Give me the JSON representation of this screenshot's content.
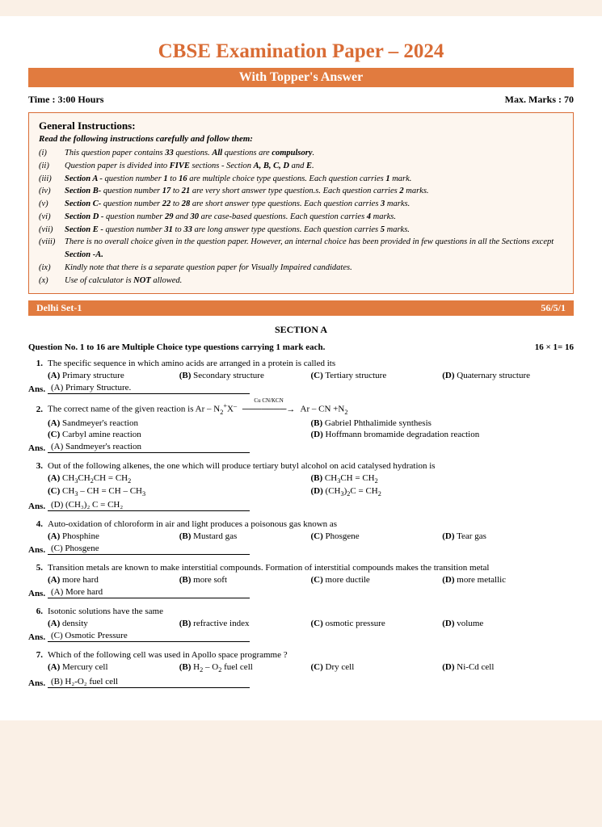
{
  "title": "CBSE Examination Paper – 2024",
  "subtitle": "With Topper's Answer",
  "time_label": "Time : 3:00 Hours",
  "marks_label": "Max. Marks : 70",
  "instructions": {
    "heading": "General Instructions:",
    "lead": "Read the following instructions carefully and follow them:",
    "items": [
      {
        "num": "(i)",
        "html": "This question paper contains <b>33</b> questions. <b>All</b> questions are <b>compulsory</b>."
      },
      {
        "num": "(ii)",
        "html": "Question paper is divided into <b>FIVE</b> sections - Section <b>A, B, C, D</b>  and <b>E</b>."
      },
      {
        "num": "(iii)",
        "html": "<b>Section A -</b> question number <b>1</b> to <b>16</b> are multiple choice type  questions. Each question carries <b>1</b> mark."
      },
      {
        "num": "(iv)",
        "html": "<b>Section B-</b> question number <b>17</b> to <b>21</b> are very short answer type  question.s. Each question carries <b>2</b> marks."
      },
      {
        "num": "(v)",
        "html": "<b>Section C-</b> question number <b>22</b> to <b>28</b> are short answer type questions.  Each question carries <b>3</b> marks."
      },
      {
        "num": "(vi)",
        "html": "<b>Section D -</b> question number <b>29</b> and <b>30</b> are case-based questions.  Each question carries <b>4</b> marks."
      },
      {
        "num": "(vii)",
        "html": "<b>Section E -</b> question number <b>31</b> to <b>33</b> are long answer type questions.  Each question carries <b>5</b> marks."
      },
      {
        "num": "(viii)",
        "html": "There is no overall choice given in the question paper. However, an  internal choice has been provided in few questions in all the Sections except <b>Section -A.</b>"
      },
      {
        "num": "(ix)",
        "html": "Kindly note that there is a separate question paper for Visually  Impaired candidates."
      },
      {
        "num": "(x)",
        "html": "Use of calculator is <b>NOT</b> allowed."
      }
    ]
  },
  "set_band": {
    "left": "Delhi Set-1",
    "right": "56/5/1"
  },
  "section_a": {
    "title": "SECTION A",
    "lead_left": "Question No. 1 to 16 are Multiple Choice type questions carrying 1 mark each.",
    "lead_right": "16 × 1= 16"
  },
  "questions": [
    {
      "num": "1.",
      "text": "The specific sequence in which amino acids are arranged in a protein is called its",
      "options": [
        {
          "label": "(A)",
          "text": "Primary structure"
        },
        {
          "label": "(B)",
          "text": "Secondary structure"
        },
        {
          "label": "(C)",
          "text": "Tertiary structure"
        },
        {
          "label": "(D)",
          "text": "Quaternary structure"
        }
      ],
      "opt_wide": false,
      "answer": "(A)  Primary Structure."
    },
    {
      "num": "2.",
      "text_html": "The correct name of the given reaction is Ar – N<sub>2</sub><sup>+</sup>X<sup>–</sup> <span class='arrow-over'>───────→</span> Ar – CN  +N<sub>2</sub>",
      "options": [
        {
          "label": "(A)",
          "text": "Sandmeyer's reaction"
        },
        {
          "label": "(B)",
          "text": "Gabriel Phthalimide synthesis"
        },
        {
          "label": "(C)",
          "text": "Carbyl amine reaction"
        },
        {
          "label": "(D)",
          "text": "Hoffmann bromamide degradation reaction"
        }
      ],
      "opt_wide": true,
      "answer": "(A)  Sandmeyer's reaction"
    },
    {
      "num": "3.",
      "text": "Out of the following alkenes, the one which will produce tertiary butyl alcohol on acid catalysed hydration is",
      "options": [
        {
          "label": "(A)",
          "html": "CH<sub>3</sub>CH<sub>2</sub>CH = CH<sub>2</sub>"
        },
        {
          "label": "(B)",
          "html": "CH<sub>3</sub>CH = CH<sub>2</sub>"
        },
        {
          "label": "(C)",
          "html": "CH<sub>3</sub> – CH = CH – CH<sub>3</sub>"
        },
        {
          "label": "(D)",
          "html": "(CH<sub>3</sub>)<sub>2</sub>C = CH<sub>2</sub>"
        }
      ],
      "opt_wide": true,
      "answer": "(D)   (CH₃)₂ C = CH₂"
    },
    {
      "num": "4.",
      "text": "Auto-oxidation of chloroform in air and light produces a poisonous gas known as",
      "options": [
        {
          "label": "(A)",
          "text": "Phosphine"
        },
        {
          "label": "(B)",
          "text": "Mustard gas"
        },
        {
          "label": "(C)",
          "text": "Phosgene"
        },
        {
          "label": "(D)",
          "text": "Tear gas"
        }
      ],
      "opt_wide": false,
      "answer": "(C)   Phosgene"
    },
    {
      "num": "5.",
      "text": "Transition metals are known to make interstitial compounds. Formation of interstitial compounds makes the transition metal",
      "options": [
        {
          "label": "(A)",
          "text": "more hard"
        },
        {
          "label": "(B)",
          "text": "more soft"
        },
        {
          "label": "(C)",
          "text": "more ductile"
        },
        {
          "label": "(D)",
          "text": "more metallic"
        }
      ],
      "opt_wide": false,
      "answer": "(A)   More hard"
    },
    {
      "num": "6.",
      "text": "Isotonic solutions have the same",
      "options": [
        {
          "label": "(A)",
          "text": "density"
        },
        {
          "label": "(B)",
          "text": "refractive index"
        },
        {
          "label": "(C)",
          "text": "osmotic pressure"
        },
        {
          "label": "(D)",
          "text": "volume"
        }
      ],
      "opt_wide": false,
      "answer": "(C)   Osmotic Pressure"
    },
    {
      "num": "7.",
      "text": "Which of the following cell was used in Apollo space programme ?",
      "options": [
        {
          "label": "(A)",
          "text": "Mercury cell"
        },
        {
          "label": "(B)",
          "html": "H<sub>2</sub> – O<sub>2</sub> fuel cell"
        },
        {
          "label": "(C)",
          "text": "Dry cell"
        },
        {
          "label": "(D)",
          "text": "Ni-Cd cell"
        }
      ],
      "opt_wide": false,
      "answer": "(B)   H₂-O₂ fuel cell"
    }
  ],
  "ans_label": "Ans."
}
